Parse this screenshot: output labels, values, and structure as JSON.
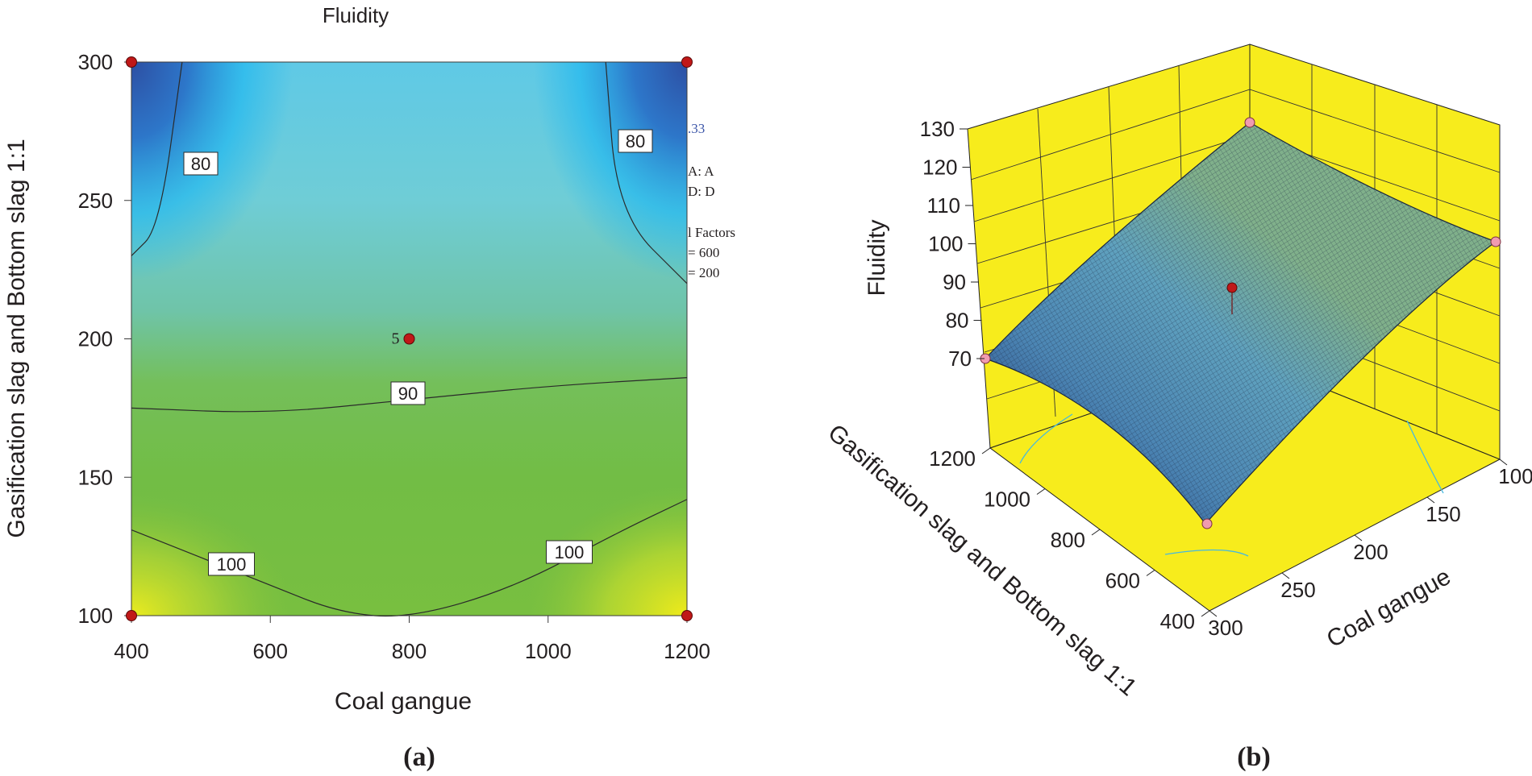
{
  "chart_data": [
    {
      "panel": "(a)",
      "type": "heatmap",
      "title": "Fluidity",
      "xlabel": "Coal gangue",
      "ylabel": "Gasification slag and Bottom slag 1:1",
      "xlim": [
        400,
        1200
      ],
      "ylim": [
        100,
        300
      ],
      "x_ticks": [
        "400",
        "600",
        "800",
        "1000",
        "1200"
      ],
      "y_ticks": [
        "100",
        "150",
        "200",
        "250",
        "300"
      ],
      "contours": [
        {
          "level": 80,
          "label": "80",
          "points": [
            [
              473,
              300
            ],
            [
              440,
              240
            ],
            [
              400,
              230
            ]
          ]
        },
        {
          "level": 80,
          "label": "80",
          "points": [
            [
              1083,
              300
            ],
            [
              1100,
              245
            ],
            [
              1200,
              220
            ]
          ]
        },
        {
          "level": 90,
          "label": "90",
          "points": [
            [
              400,
              175
            ],
            [
              600,
              173
            ],
            [
              800,
              178
            ],
            [
              1000,
              183
            ],
            [
              1200,
              186
            ]
          ]
        },
        {
          "level": 100,
          "label": "100",
          "points": [
            [
              400,
              131
            ],
            [
              600,
              111
            ],
            [
              700,
              101
            ],
            [
              800,
              99
            ],
            [
              950,
              110
            ],
            [
              1100,
              130
            ],
            [
              1200,
              142
            ]
          ]
        }
      ],
      "design_points": [
        {
          "x": 400,
          "y": 300
        },
        {
          "x": 1200,
          "y": 300
        },
        {
          "x": 800,
          "y": 200,
          "label": "5"
        },
        {
          "x": 400,
          "y": 100
        },
        {
          "x": 1200,
          "y": 100
        }
      ],
      "occluded_legend_fragments": [
        ".33",
        "A: A",
        "D: D",
        "l Factors",
        "= 600",
        "= 200"
      ],
      "colormap": [
        "#2d4fa3",
        "#22b8ef",
        "#6fcdd6",
        "#71bd66",
        "#74bd3f",
        "#f0eb1a"
      ]
    },
    {
      "panel": "(b)",
      "type": "surface",
      "zlabel": "Fluidity",
      "ylabel": "Gasification slag and Bottom slag 1:1",
      "xlabel": "Coal gangue",
      "z_ticks": [
        "70",
        "80",
        "90",
        "100",
        "110",
        "120",
        "130"
      ],
      "zlim": [
        70,
        130
      ],
      "y_ticks": [
        "400",
        "600",
        "800",
        "1000",
        "1200"
      ],
      "x_ticks": [
        "300",
        "250",
        "200",
        "150",
        "100"
      ],
      "wall_color": "#f7ec1c",
      "surface_colors": [
        "#2b4a86",
        "#5fa1be",
        "#80b08b"
      ],
      "corner_values": [
        {
          "coal_gangue": 300,
          "slag": 1200,
          "fluidity": 70
        },
        {
          "coal_gangue": 300,
          "slag": 400,
          "fluidity": 128
        },
        {
          "coal_gangue": 100,
          "slag": 400,
          "fluidity": 100
        },
        {
          "coal_gangue": 100,
          "slag": 1200,
          "fluidity": 60
        },
        {
          "coal_gangue": 200,
          "slag": 800,
          "fluidity": 93,
          "center": true
        }
      ]
    }
  ],
  "panel_labels": [
    "(a)",
    "(b)"
  ]
}
